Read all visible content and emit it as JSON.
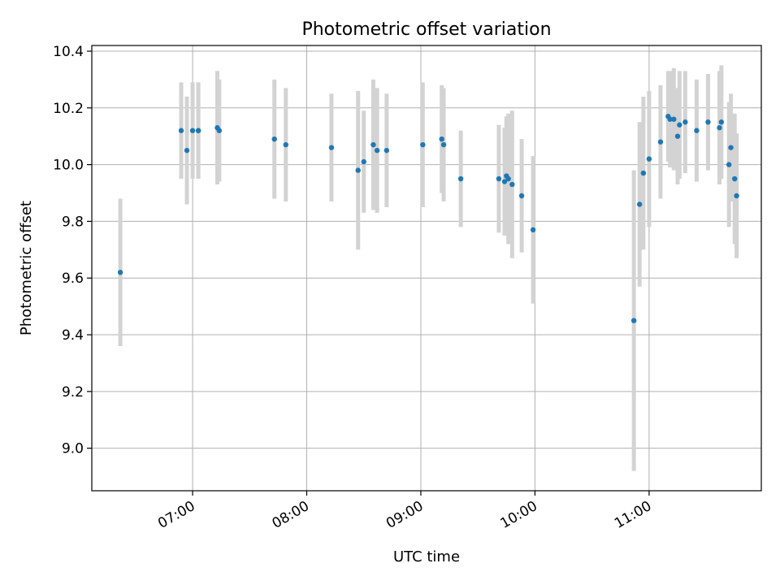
{
  "chart_data": {
    "type": "scatter",
    "title": "Photometric offset variation",
    "xlabel": "UTC time",
    "ylabel": "Photometric offset",
    "grid": true,
    "x_ticks": [
      "07:00",
      "08:00",
      "09:00",
      "10:00",
      "11:00"
    ],
    "y_ticks": [
      "9.0",
      "9.2",
      "9.4",
      "9.6",
      "9.8",
      "10.0",
      "10.2",
      "10.4"
    ],
    "xlim": [
      "06:07",
      "11:59"
    ],
    "ylim": [
      8.85,
      10.42
    ],
    "colors": {
      "point": "#1f77b4",
      "errorbar": "#d3d3d3"
    },
    "points": [
      {
        "x": "06:22",
        "y": 9.62,
        "err": 0.26
      },
      {
        "x": "06:54",
        "y": 10.12,
        "err": 0.17
      },
      {
        "x": "06:57",
        "y": 10.05,
        "err": 0.19
      },
      {
        "x": "07:00",
        "y": 10.12,
        "err": 0.17
      },
      {
        "x": "07:03",
        "y": 10.12,
        "err": 0.17
      },
      {
        "x": "07:03",
        "y": 10.12,
        "err": 0.17
      },
      {
        "x": "07:13",
        "y": 10.13,
        "err": 0.2
      },
      {
        "x": "07:14",
        "y": 10.12,
        "err": 0.18
      },
      {
        "x": "07:43",
        "y": 10.09,
        "err": 0.21
      },
      {
        "x": "07:49",
        "y": 10.07,
        "err": 0.2
      },
      {
        "x": "08:13",
        "y": 10.06,
        "err": 0.19
      },
      {
        "x": "08:27",
        "y": 9.98,
        "err": 0.28
      },
      {
        "x": "08:30",
        "y": 10.01,
        "err": 0.18
      },
      {
        "x": "08:35",
        "y": 10.07,
        "err": 0.23
      },
      {
        "x": "08:37",
        "y": 10.05,
        "err": 0.22
      },
      {
        "x": "08:42",
        "y": 10.05,
        "err": 0.2
      },
      {
        "x": "09:01",
        "y": 10.07,
        "err": 0.22
      },
      {
        "x": "09:11",
        "y": 10.09,
        "err": 0.19
      },
      {
        "x": "09:12",
        "y": 10.07,
        "err": 0.2
      },
      {
        "x": "09:21",
        "y": 9.95,
        "err": 0.17
      },
      {
        "x": "09:41",
        "y": 9.95,
        "err": 0.19
      },
      {
        "x": "09:44",
        "y": 9.94,
        "err": 0.19
      },
      {
        "x": "09:45",
        "y": 9.96,
        "err": 0.21
      },
      {
        "x": "09:46",
        "y": 9.95,
        "err": 0.23
      },
      {
        "x": "09:48",
        "y": 9.93,
        "err": 0.26
      },
      {
        "x": "09:53",
        "y": 9.89,
        "err": 0.2
      },
      {
        "x": "09:59",
        "y": 9.77,
        "err": 0.26
      },
      {
        "x": "10:52",
        "y": 9.45,
        "err": 0.53
      },
      {
        "x": "10:55",
        "y": 9.86,
        "err": 0.29
      },
      {
        "x": "10:57",
        "y": 9.97,
        "err": 0.27
      },
      {
        "x": "11:00",
        "y": 10.02,
        "err": 0.24
      },
      {
        "x": "11:06",
        "y": 10.08,
        "err": 0.2
      },
      {
        "x": "11:10",
        "y": 10.17,
        "err": 0.16
      },
      {
        "x": "11:11",
        "y": 10.16,
        "err": 0.17
      },
      {
        "x": "11:13",
        "y": 10.16,
        "err": 0.18
      },
      {
        "x": "11:15",
        "y": 10.1,
        "err": 0.17
      },
      {
        "x": "11:16",
        "y": 10.14,
        "err": 0.19
      },
      {
        "x": "11:19",
        "y": 10.15,
        "err": 0.18
      },
      {
        "x": "11:25",
        "y": 10.12,
        "err": 0.18
      },
      {
        "x": "11:31",
        "y": 10.15,
        "err": 0.17
      },
      {
        "x": "11:37",
        "y": 10.13,
        "err": 0.2
      },
      {
        "x": "11:38",
        "y": 10.15,
        "err": 0.2
      },
      {
        "x": "11:42",
        "y": 10.0,
        "err": 0.22
      },
      {
        "x": "11:43",
        "y": 10.06,
        "err": 0.19
      },
      {
        "x": "11:45",
        "y": 9.95,
        "err": 0.23
      },
      {
        "x": "11:46",
        "y": 9.89,
        "err": 0.22
      }
    ]
  }
}
